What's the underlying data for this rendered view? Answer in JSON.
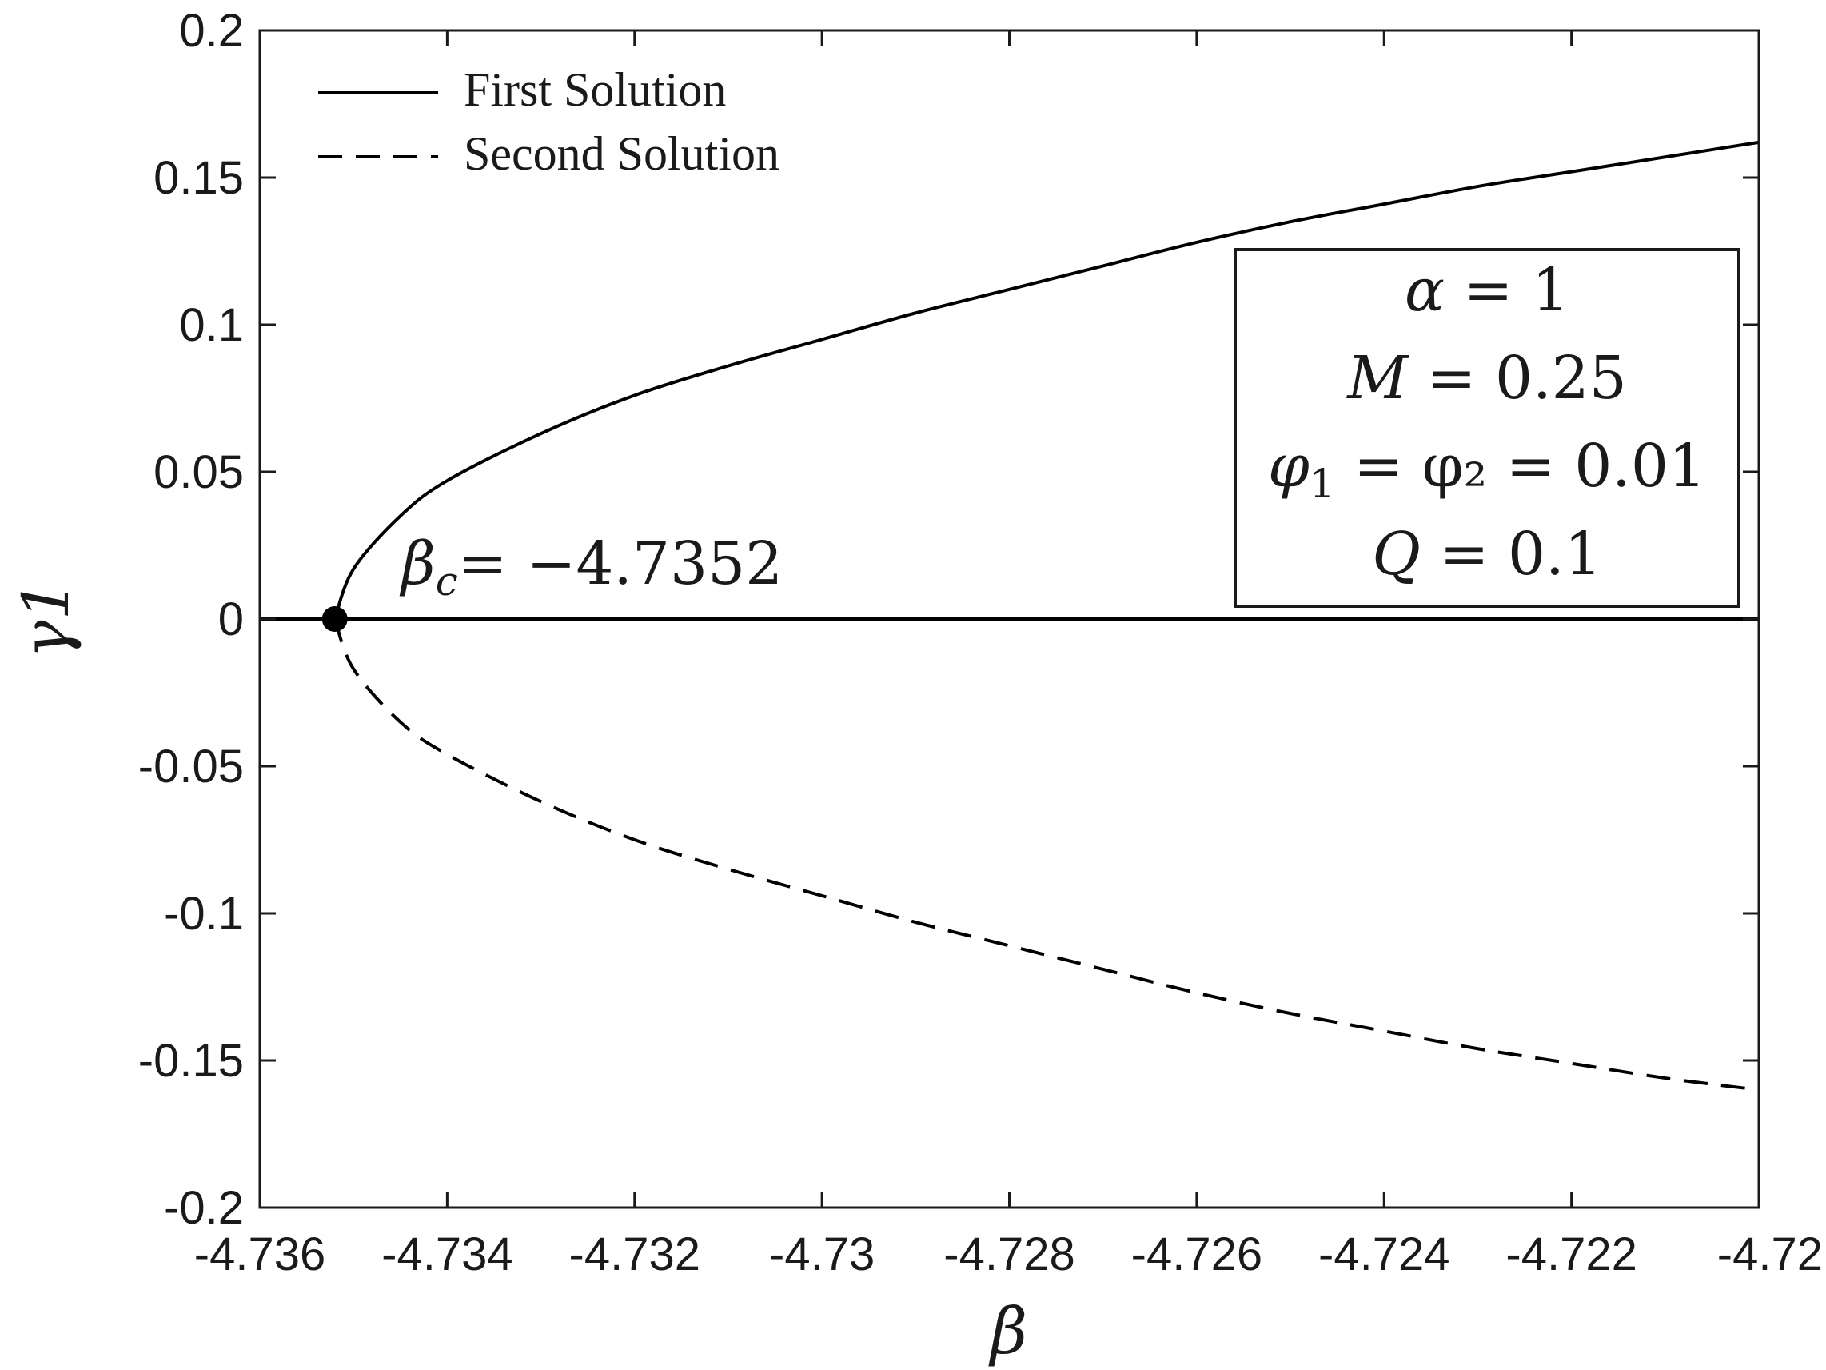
{
  "chart_data": {
    "type": "line",
    "xlabel": "β",
    "ylabel": "γ1",
    "xlim": [
      -4.736,
      -4.72
    ],
    "ylim": [
      -0.2,
      0.2
    ],
    "x_ticks": [
      -4.736,
      -4.734,
      -4.732,
      -4.73,
      -4.728,
      -4.726,
      -4.724,
      -4.722,
      -4.72
    ],
    "x_tick_labels": [
      "-4.736",
      "-4.734",
      "-4.732",
      "-4.73",
      "-4.728",
      "-4.726",
      "-4.724",
      "-4.722",
      "-4.72"
    ],
    "y_ticks": [
      -0.2,
      -0.15,
      -0.1,
      -0.05,
      0,
      0.05,
      0.1,
      0.15,
      0.2
    ],
    "y_tick_labels": [
      "-0.2",
      "-0.15",
      "-0.1",
      "-0.05",
      "0",
      "0.05",
      "0.1",
      "0.15",
      "0.2"
    ],
    "grid": false,
    "legend_position": "top-left",
    "series": [
      {
        "name": "First Solution",
        "style": "solid",
        "color": "#000000",
        "x": [
          -4.7352,
          -4.735,
          -4.7345,
          -4.734,
          -4.733,
          -4.732,
          -4.731,
          -4.73,
          -4.729,
          -4.728,
          -4.727,
          -4.726,
          -4.725,
          -4.724,
          -4.723,
          -4.722,
          -4.721,
          -4.72
        ],
        "y": [
          0,
          0.017,
          0.035,
          0.047,
          0.063,
          0.076,
          0.086,
          0.095,
          0.104,
          0.112,
          0.12,
          0.128,
          0.135,
          0.141,
          0.147,
          0.152,
          0.157,
          0.162
        ]
      },
      {
        "name": "Second Solution",
        "style": "dashed",
        "color": "#000000",
        "x": [
          -4.7352,
          -4.735,
          -4.7345,
          -4.734,
          -4.733,
          -4.732,
          -4.731,
          -4.73,
          -4.729,
          -4.728,
          -4.727,
          -4.726,
          -4.725,
          -4.724,
          -4.723,
          -4.722,
          -4.721,
          -4.72
        ],
        "y": [
          0,
          -0.017,
          -0.035,
          -0.046,
          -0.062,
          -0.075,
          -0.085,
          -0.094,
          -0.103,
          -0.111,
          -0.119,
          -0.127,
          -0.134,
          -0.14,
          -0.146,
          -0.151,
          -0.156,
          -0.16
        ]
      },
      {
        "name": "",
        "style": "solid",
        "color": "#000000",
        "x": [
          -4.736,
          -4.72
        ],
        "y": [
          0,
          0
        ]
      }
    ],
    "critical_point": {
      "x": -4.7352,
      "y": 0,
      "label_symbol": "β",
      "label_subscript": "c",
      "label_value": "= −4.7352"
    },
    "annotation_box": {
      "position": "right",
      "lines": [
        {
          "symbol": "α",
          "subscript": "",
          "text": " = 1"
        },
        {
          "symbol": "M",
          "subscript": "",
          "text": " = 0.25"
        },
        {
          "symbol": "φ",
          "subscript": "1",
          "text": " = φ₂ = 0.01"
        },
        {
          "symbol": "Q",
          "subscript": "",
          "text": " = 0.1"
        }
      ]
    }
  }
}
